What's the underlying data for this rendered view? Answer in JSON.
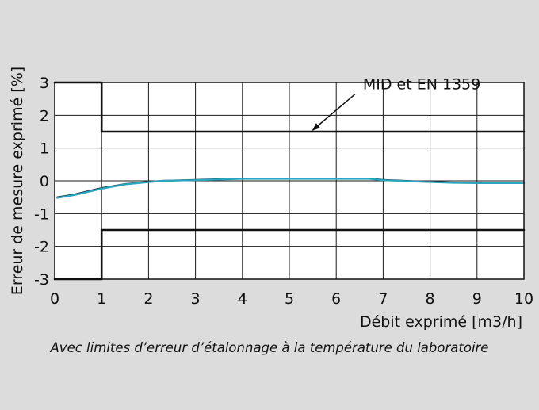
{
  "chart_data": {
    "type": "line",
    "title": "",
    "xlabel": "Débit exprimé [m3/h]",
    "ylabel": "Erreur de mesure exprimé [%]",
    "xlim": [
      0,
      10
    ],
    "ylim": [
      -3,
      3
    ],
    "x_ticks": [
      "0",
      "1",
      "2",
      "3",
      "4",
      "5",
      "6",
      "7",
      "8",
      "9",
      "10"
    ],
    "y_ticks": [
      "3",
      "2",
      "1",
      "0",
      "-1",
      "-2",
      "-3"
    ],
    "grid": true,
    "series": [
      {
        "role": "upper-limit",
        "color": "#111111",
        "points": [
          [
            0,
            3
          ],
          [
            1,
            3
          ],
          [
            1,
            1.5
          ],
          [
            10,
            1.5
          ]
        ]
      },
      {
        "role": "lower-limit",
        "color": "#111111",
        "points": [
          [
            0,
            -3
          ],
          [
            1,
            -3
          ],
          [
            1,
            -1.5
          ],
          [
            10,
            -1.5
          ]
        ]
      },
      {
        "role": "measurement-dark",
        "color": "#1f3b4d",
        "points": [
          [
            0.05,
            -0.5
          ],
          [
            0.4,
            -0.42
          ],
          [
            0.7,
            -0.32
          ],
          [
            1,
            -0.22
          ],
          [
            1.5,
            -0.1
          ],
          [
            2,
            -0.03
          ],
          [
            2.3,
            0
          ],
          [
            3,
            0.03
          ],
          [
            4,
            0.07
          ],
          [
            5,
            0.07
          ],
          [
            6,
            0.07
          ],
          [
            6.7,
            0.07
          ],
          [
            7,
            0.03
          ],
          [
            7.8,
            -0.02
          ],
          [
            8.5,
            -0.05
          ],
          [
            9,
            -0.06
          ],
          [
            10,
            -0.06
          ]
        ]
      },
      {
        "role": "measurement",
        "color": "#2aa7bf",
        "points": [
          [
            0.05,
            -0.52
          ],
          [
            0.4,
            -0.44
          ],
          [
            0.7,
            -0.34
          ],
          [
            1,
            -0.24
          ],
          [
            1.5,
            -0.11
          ],
          [
            2,
            -0.04
          ],
          [
            2.3,
            0
          ],
          [
            3,
            0.02
          ],
          [
            4,
            0.06
          ],
          [
            5,
            0.06
          ],
          [
            6,
            0.06
          ],
          [
            6.7,
            0.06
          ],
          [
            7,
            0.02
          ],
          [
            7.8,
            -0.03
          ],
          [
            8.5,
            -0.06
          ],
          [
            9,
            -0.07
          ],
          [
            10,
            -0.07
          ]
        ]
      }
    ],
    "annotations": [
      {
        "text": "MID et EN 1359",
        "target": [
          5.5,
          1.5
        ],
        "label_anchor": [
          6.4,
          2.5
        ]
      }
    ],
    "caption": "Avec limites d’erreur d’étalonnage à la température du laboratoire"
  }
}
